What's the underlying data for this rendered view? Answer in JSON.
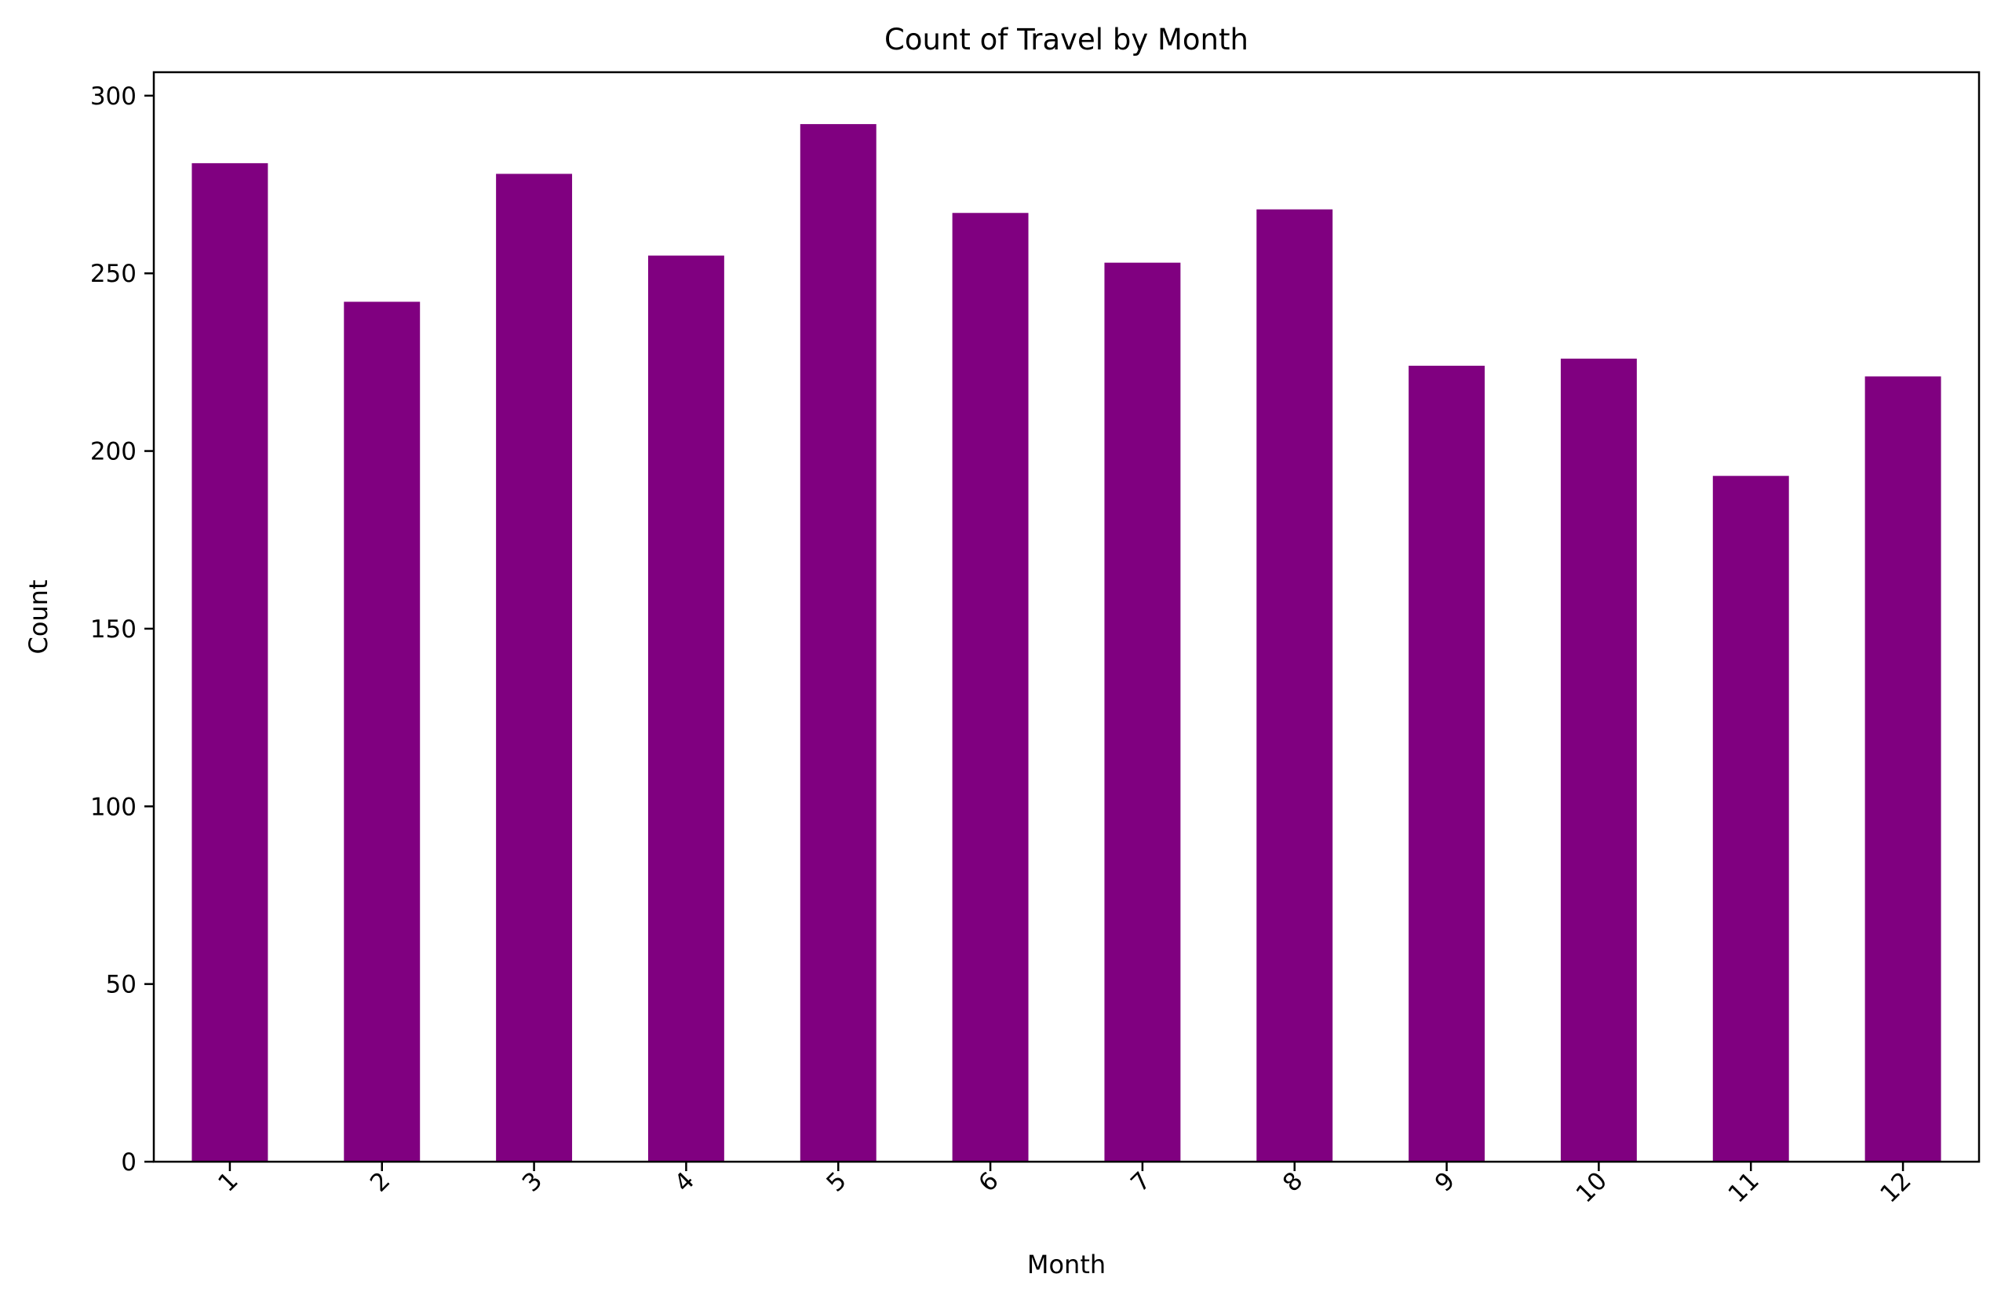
{
  "chart_data": {
    "type": "bar",
    "title": "Count of Travel by Month",
    "xlabel": "Month",
    "ylabel": "Count",
    "categories": [
      "1",
      "2",
      "3",
      "4",
      "5",
      "6",
      "7",
      "8",
      "9",
      "10",
      "11",
      "12"
    ],
    "values": [
      281,
      242,
      278,
      255,
      292,
      267,
      253,
      268,
      224,
      226,
      193,
      221
    ],
    "ylim": [
      0,
      306.6
    ],
    "yticks": [
      0,
      50,
      100,
      150,
      200,
      250,
      300
    ],
    "grid": false,
    "legend": "none",
    "xtick_rotation_deg": 45,
    "bar_color": "#800080"
  }
}
